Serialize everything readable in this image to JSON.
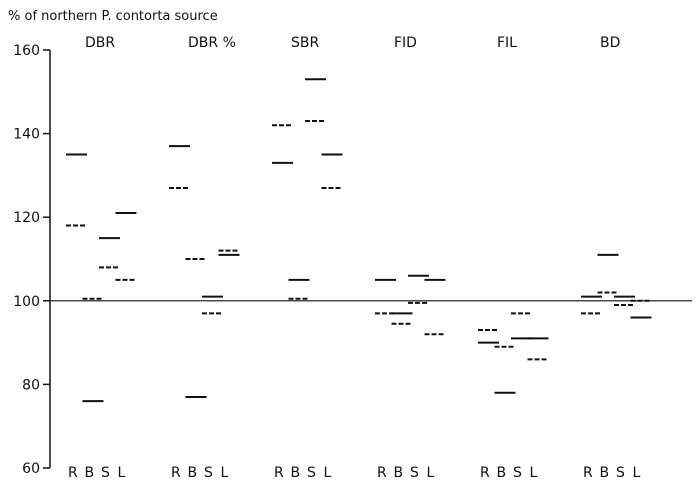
{
  "chart_data": {
    "type": "dot",
    "ylabel": "% of northern P. contorta source",
    "ylim": [
      60,
      160
    ],
    "yticks": [
      60,
      80,
      100,
      120,
      140,
      160
    ],
    "reference_line": 100,
    "x_sublabels": [
      "R",
      "B",
      "S",
      "L"
    ],
    "groups": [
      {
        "name": "DBR",
        "subgroups": [
          {
            "label": "R",
            "solid": [
              135
            ],
            "dashed": [
              118
            ]
          },
          {
            "label": "B",
            "solid": [
              76
            ],
            "dashed": [
              100.5
            ]
          },
          {
            "label": "S",
            "solid": [
              115
            ],
            "dashed": [
              108
            ]
          },
          {
            "label": "L",
            "solid": [
              121
            ],
            "dashed": [
              105
            ]
          }
        ]
      },
      {
        "name": "DBR %",
        "subgroups": [
          {
            "label": "R",
            "solid": [
              137
            ],
            "dashed": [
              127
            ]
          },
          {
            "label": "B",
            "solid": [
              77
            ],
            "dashed": [
              110
            ]
          },
          {
            "label": "S",
            "solid": [
              101
            ],
            "dashed": [
              97
            ]
          },
          {
            "label": "L",
            "solid": [
              111
            ],
            "dashed": [
              112
            ]
          }
        ]
      },
      {
        "name": "SBR",
        "subgroups": [
          {
            "label": "R",
            "solid": [
              133
            ],
            "dashed": [
              142
            ]
          },
          {
            "label": "B",
            "solid": [
              105
            ],
            "dashed": [
              100.5
            ]
          },
          {
            "label": "S",
            "solid": [
              153
            ],
            "dashed": [
              143
            ]
          },
          {
            "label": "L",
            "solid": [
              135
            ],
            "dashed": [
              127
            ]
          }
        ]
      },
      {
        "name": "FID",
        "subgroups": [
          {
            "label": "R",
            "solid": [
              105
            ],
            "dashed": [
              97
            ]
          },
          {
            "label": "B",
            "solid": [
              97
            ],
            "dashed": [
              94.5
            ]
          },
          {
            "label": "S",
            "solid": [
              106
            ],
            "dashed": [
              99.5
            ]
          },
          {
            "label": "L",
            "solid": [
              105
            ],
            "dashed": [
              92
            ]
          }
        ]
      },
      {
        "name": "FIL",
        "subgroups": [
          {
            "label": "R",
            "solid": [
              90
            ],
            "dashed": [
              93
            ]
          },
          {
            "label": "B",
            "solid": [
              78
            ],
            "dashed": [
              89
            ]
          },
          {
            "label": "S",
            "solid": [
              91
            ],
            "dashed": [
              97
            ]
          },
          {
            "label": "L",
            "solid": [
              91
            ],
            "dashed": [
              86
            ]
          }
        ]
      },
      {
        "name": "BD",
        "subgroups": [
          {
            "label": "R",
            "solid": [
              101
            ],
            "dashed": [
              97
            ]
          },
          {
            "label": "B",
            "solid": [
              111
            ],
            "dashed": [
              102
            ]
          },
          {
            "label": "S",
            "solid": [
              101
            ],
            "dashed": [
              99
            ]
          },
          {
            "label": "L",
            "solid": [
              96
            ],
            "dashed": [
              100
            ]
          }
        ]
      }
    ]
  }
}
